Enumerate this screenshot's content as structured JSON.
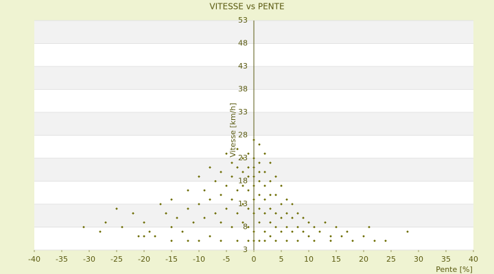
{
  "chart_data": {
    "type": "scatter",
    "title": "VITESSE vs PENTE",
    "x_label": "Pente [%]",
    "y_label": "Vitesse [km/h]",
    "color": "#6b6b00",
    "grid": true,
    "xlim": [
      -40,
      40
    ],
    "xticks": [
      -40,
      -35,
      -30,
      -25,
      -20,
      -15,
      -10,
      -5,
      0,
      5,
      10,
      15,
      20,
      25,
      30,
      35,
      40
    ],
    "ylim": [
      3,
      53
    ],
    "yticks": [
      3,
      8,
      13,
      18,
      23,
      28,
      33,
      38,
      43,
      48,
      53
    ],
    "x": [
      -31,
      -28,
      -27,
      -25,
      -24,
      -22,
      -21,
      -20,
      -19,
      -18,
      -17,
      -16,
      -15,
      -15,
      -14,
      -13,
      -12,
      -12,
      -11,
      -10,
      -10,
      -9,
      -9,
      -8,
      -8,
      -7,
      -7,
      -6,
      -6,
      -6,
      -5,
      -5,
      -5,
      -4,
      -4,
      -4,
      -4,
      -3,
      -3,
      -3,
      -3,
      -2,
      -2,
      -2,
      -2,
      -2,
      -1,
      -1,
      -1,
      -1,
      -1,
      -1,
      0,
      0,
      0,
      0,
      0,
      0,
      0,
      0,
      1,
      1,
      1,
      1,
      1,
      1,
      1,
      2,
      2,
      2,
      2,
      2,
      2,
      3,
      3,
      3,
      3,
      3,
      4,
      4,
      4,
      4,
      5,
      5,
      5,
      5,
      6,
      6,
      6,
      7,
      7,
      7,
      8,
      8,
      9,
      9,
      10,
      10,
      11,
      12,
      13,
      14,
      15,
      16,
      17,
      18,
      20,
      21,
      22,
      24,
      28,
      -20,
      -15,
      -10,
      -6,
      -3,
      -1,
      1,
      2,
      4,
      6,
      8,
      11,
      14,
      -8,
      -12,
      3,
      0
    ],
    "values": [
      8,
      7,
      9,
      12,
      8,
      11,
      6,
      9,
      7,
      6,
      13,
      11,
      8,
      14,
      10,
      7,
      12,
      16,
      9,
      19,
      13,
      16,
      10,
      21,
      14,
      18,
      11,
      20,
      15,
      9,
      24,
      17,
      12,
      22,
      19,
      14,
      8,
      25,
      21,
      16,
      11,
      23,
      20,
      17,
      13,
      9,
      24,
      21,
      19,
      16,
      12,
      8,
      27,
      23,
      21,
      19,
      17,
      14,
      11,
      7,
      26,
      22,
      20,
      18,
      15,
      12,
      9,
      24,
      20,
      17,
      14,
      11,
      7,
      22,
      18,
      15,
      12,
      9,
      19,
      15,
      11,
      8,
      17,
      13,
      10,
      7,
      14,
      11,
      8,
      13,
      10,
      7,
      11,
      8,
      10,
      7,
      9,
      6,
      8,
      7,
      9,
      6,
      8,
      6,
      7,
      5,
      6,
      8,
      5,
      5,
      7,
      6,
      5,
      5,
      5,
      5,
      5,
      5,
      5,
      5,
      5,
      5,
      5,
      5,
      6,
      5,
      6,
      5
    ]
  }
}
